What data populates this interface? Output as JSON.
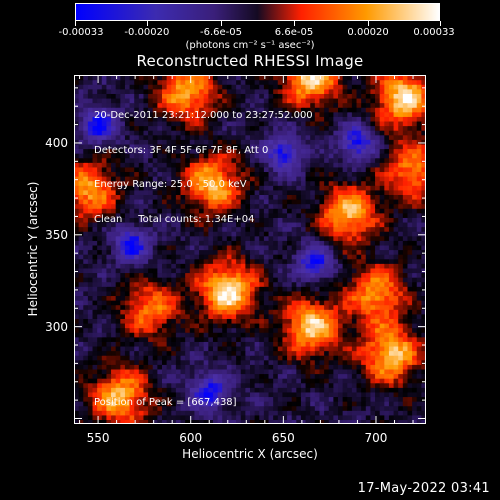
{
  "colorbar": {
    "units": "(photons cm⁻² s⁻¹ asec⁻²)",
    "ticks": [
      {
        "label": "-0.00033",
        "value": -0.00033
      },
      {
        "label": "-0.00020",
        "value": -0.0002
      },
      {
        "label": "-6.6e-05",
        "value": -6.6e-05
      },
      {
        "label": "6.6e-05",
        "value": 6.6e-05
      },
      {
        "label": "0.00020",
        "value": 0.0002
      },
      {
        "label": "0.00033",
        "value": 0.00033
      }
    ]
  },
  "chart_data": {
    "type": "heatmap",
    "title": "Reconstructed RHESSI Image",
    "xlabel": "Heliocentric X (arcsec)",
    "ylabel": "Heliocentric Y (arcsec)",
    "xlim": [
      537,
      727
    ],
    "ylim": [
      247,
      437
    ],
    "xticks": [
      550,
      600,
      650,
      700
    ],
    "yticks": [
      300,
      350,
      400
    ],
    "info_lines": [
      "20-Dec-2011 23:21:12.000 to 23:27:52.000",
      "Detectors: 3F 4F 5F 6F 7F 8F, Att 0",
      "Energy Range: 25.0 - 50.0 keV",
      "Clean     Total counts: 1.34E+04"
    ],
    "peak_label": "Position of Peak = [667,438]",
    "bright_regions": [
      {
        "x": 620,
        "y": 320,
        "level": 1.0
      },
      {
        "x": 612,
        "y": 378,
        "level": 0.85
      },
      {
        "x": 665,
        "y": 300,
        "level": 0.9
      },
      {
        "x": 685,
        "y": 362,
        "level": 0.85
      },
      {
        "x": 665,
        "y": 436,
        "level": 0.95
      },
      {
        "x": 715,
        "y": 425,
        "level": 0.95
      },
      {
        "x": 598,
        "y": 428,
        "level": 0.8
      },
      {
        "x": 562,
        "y": 262,
        "level": 0.85
      },
      {
        "x": 708,
        "y": 285,
        "level": 0.9
      },
      {
        "x": 700,
        "y": 318,
        "level": 0.75
      },
      {
        "x": 545,
        "y": 375,
        "level": 0.75
      },
      {
        "x": 578,
        "y": 310,
        "level": 0.65
      },
      {
        "x": 720,
        "y": 385,
        "level": 0.7
      }
    ],
    "dark_regions": [
      {
        "x": 667,
        "y": 335
      },
      {
        "x": 610,
        "y": 265
      },
      {
        "x": 550,
        "y": 410
      },
      {
        "x": 650,
        "y": 395
      },
      {
        "x": 690,
        "y": 400
      },
      {
        "x": 568,
        "y": 345
      }
    ],
    "colormap": [
      "#0000ff",
      "#4b2fa8",
      "#3a1f7a",
      "#000000",
      "#ff2000",
      "#ff9a00",
      "#ffffff"
    ]
  },
  "timestamp": "17-May-2022 03:41"
}
